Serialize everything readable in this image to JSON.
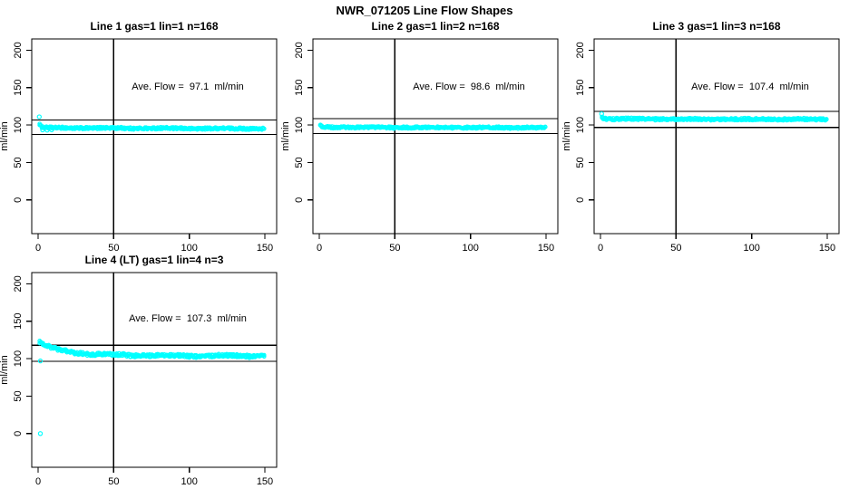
{
  "chart_data": {
    "type": "scatter",
    "title": "NWR_071205  Line Flow Shapes",
    "point_color": "#00FFFF",
    "line_color": "#000000",
    "xlim": [
      -4.2,
      157.8
    ],
    "ylim": [
      -45,
      215
    ],
    "x_ticks": [
      0,
      50,
      100,
      150
    ],
    "y_ticks": [
      0,
      50,
      100,
      150,
      200
    ],
    "ylabel": "ml/min",
    "vline_x": 50,
    "legend": "none",
    "grid": "off",
    "panels": [
      {
        "title": "Line 1 gas=1 lin=1 n=168",
        "annotation": "Ave. Flow =  97.1  ml/min",
        "avg_flow_ml_min": 97.1,
        "n": 168,
        "ref_lines": [
          106.8,
          87.4
        ],
        "band_profile": [
          [
            1,
            101
          ],
          [
            2,
            97.5
          ],
          [
            4,
            96.5
          ],
          [
            10,
            96.2
          ],
          [
            30,
            96.0
          ],
          [
            70,
            95.7
          ],
          [
            110,
            95.4
          ],
          [
            150,
            95.2
          ]
        ],
        "band_half_width": 1.4,
        "wobble": 0.3,
        "outliers": [
          [
            0.8,
            111
          ],
          [
            3,
            93.5
          ],
          [
            6,
            93.2
          ],
          [
            9,
            93.6
          ]
        ]
      },
      {
        "title": "Line 2 gas=1 lin=2 n=168",
        "annotation": "Ave. Flow =  98.6  ml/min",
        "avg_flow_ml_min": 98.6,
        "n": 168,
        "ref_lines": [
          108.5,
          88.7
        ],
        "band_profile": [
          [
            1,
            99
          ],
          [
            2,
            97.5
          ],
          [
            5,
            97.1
          ],
          [
            30,
            96.9
          ],
          [
            80,
            96.7
          ],
          [
            150,
            96.5
          ]
        ],
        "band_half_width": 1.3,
        "wobble": 0.25,
        "outliers": [
          [
            0.8,
            100
          ]
        ]
      },
      {
        "title": "Line 3 gas=1 lin=3 n=168",
        "annotation": "Ave. Flow =  107.4  ml/min",
        "avg_flow_ml_min": 107.4,
        "n": 168,
        "ref_lines": [
          118.1,
          96.7
        ],
        "band_profile": [
          [
            1,
            110.5
          ],
          [
            2,
            108.8
          ],
          [
            5,
            108.2
          ],
          [
            30,
            108.0
          ],
          [
            80,
            107.8
          ],
          [
            150,
            107.6
          ]
        ],
        "band_half_width": 1.5,
        "wobble": 0.25,
        "outliers": [
          [
            0.8,
            115
          ]
        ]
      },
      {
        "title": "Line 4 (LT) gas=1 lin=4 n=3",
        "annotation": "Ave. Flow =  107.3  ml/min",
        "avg_flow_ml_min": 107.3,
        "n": 3,
        "ref_lines": [
          118.0,
          96.6
        ],
        "band_profile": [
          [
            1,
            122
          ],
          [
            4,
            118.5
          ],
          [
            8,
            115
          ],
          [
            13,
            112
          ],
          [
            18,
            110
          ],
          [
            25,
            108
          ],
          [
            33,
            106.5
          ],
          [
            45,
            105.3
          ],
          [
            60,
            104.6
          ],
          [
            80,
            104.2
          ],
          [
            110,
            103.9
          ],
          [
            150,
            103.7
          ]
        ],
        "band_half_width": 2.0,
        "wobble": 0.7,
        "outliers": [
          [
            1.5,
            97
          ],
          [
            1.5,
            0
          ]
        ]
      }
    ]
  }
}
